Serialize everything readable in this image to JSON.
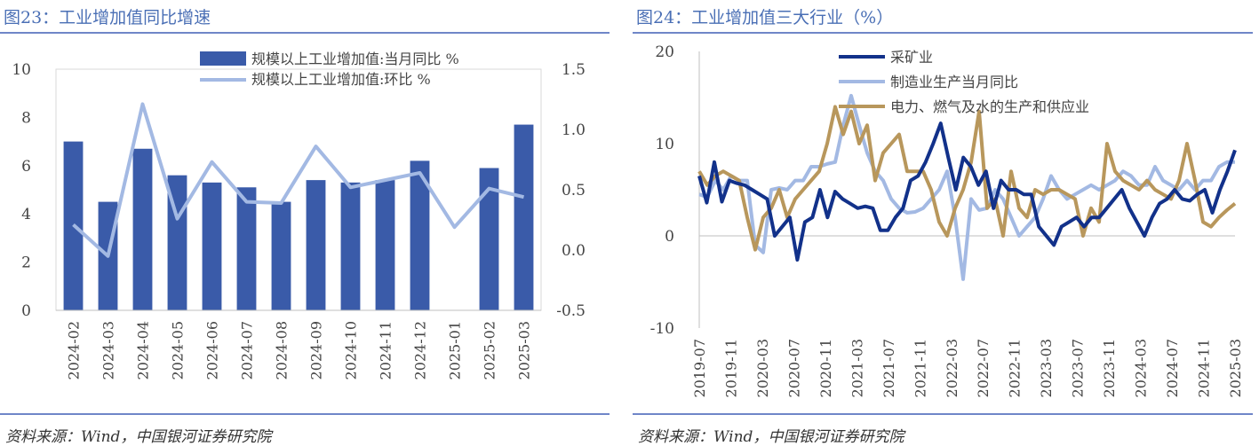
{
  "left_panel": {
    "title": "图23：工业增加值同比增速",
    "source": "资料来源：Wind，中国银河证券研究院"
  },
  "right_panel": {
    "title": "图24：工业增加值三大行业（%）",
    "source": "资料来源：Wind，中国银河证券研究院"
  },
  "colors": {
    "bar": "#3a5ba9",
    "line_light": "#a3b9e3",
    "dark_blue": "#12318a",
    "gold": "#b8975c",
    "rule": "#6f86c8"
  },
  "chart_data": [
    {
      "type": "bar",
      "title": "",
      "categories": [
        "2024-02",
        "2024-03",
        "2024-04",
        "2024-05",
        "2024-06",
        "2024-07",
        "2024-08",
        "2024-09",
        "2024-10",
        "2024-11",
        "2024-12",
        "2025-01",
        "2025-02",
        "2025-03"
      ],
      "left_ylim": [
        0,
        10
      ],
      "left_yticks": [
        "0",
        "2",
        "4",
        "6",
        "8",
        "10"
      ],
      "right_ylim": [
        -0.5,
        1.5
      ],
      "right_yticks": [
        "-0.5",
        "0.0",
        "0.5",
        "1.0",
        "1.5"
      ],
      "legend_position": "top-center",
      "series": [
        {
          "name": "规模以上工业增加值:当月同比 %",
          "type": "bar",
          "axis": "left",
          "values": [
            7.0,
            4.5,
            6.7,
            5.6,
            5.3,
            5.1,
            4.5,
            5.4,
            5.3,
            5.4,
            6.2,
            null,
            5.9,
            7.7
          ]
        },
        {
          "name": "规模以上工业增加值:环比 %",
          "type": "line",
          "axis": "right",
          "values": [
            0.21,
            -0.05,
            1.21,
            0.26,
            0.73,
            0.4,
            0.39,
            0.86,
            0.52,
            0.58,
            0.64,
            0.19,
            0.51,
            0.44
          ]
        }
      ],
      "grid": false
    },
    {
      "type": "line",
      "title": "",
      "ylim": [
        -10,
        20
      ],
      "yticks": [
        "-10",
        "0",
        "10",
        "20"
      ],
      "xticks": [
        "2019-07",
        "2019-11",
        "2020-03",
        "2020-07",
        "2020-11",
        "2021-03",
        "2021-07",
        "2021-11",
        "2022-03",
        "2022-07",
        "2022-11",
        "2023-03",
        "2023-07",
        "2023-11",
        "2024-03",
        "2024-07",
        "2024-11",
        "2025-03"
      ],
      "x_start": "2019-07",
      "x_end": "2025-03",
      "legend_position": "top-center",
      "series": [
        {
          "name": "采矿业",
          "values": [
            6.5,
            3.6,
            8.0,
            3.7,
            6.0,
            5.7,
            5.5,
            5.0,
            4.5,
            4.0,
            0.0,
            1.0,
            2.0,
            -2.6,
            1.5,
            2.0,
            5.0,
            2.0,
            4.8,
            4.0,
            3.5,
            3.0,
            3.2,
            3.0,
            0.6,
            0.6,
            2.0,
            3.0,
            6.0,
            6.5,
            8.0,
            10.0,
            12.2,
            8.5,
            5.0,
            8.5,
            7.5,
            5.5,
            7.0,
            3.0,
            6.0,
            5.0,
            5.0,
            4.5,
            4.5,
            1.0,
            0.0,
            -1.0,
            1.0,
            1.5,
            2.0,
            1.0,
            2.0,
            2.0,
            3.0,
            4.0,
            5.0,
            3.0,
            1.5,
            0.0,
            2.0,
            3.5,
            4.0,
            5.0,
            4.0,
            3.8,
            4.5,
            5.0,
            2.5,
            5.0,
            7.0,
            9.3
          ]
        },
        {
          "name": "制造业生产当月同比",
          "values": [
            4.5,
            4.2,
            6.0,
            5.0,
            6.5,
            6.0,
            6.0,
            -1.0,
            -1.8,
            5.0,
            5.2,
            5.0,
            6.0,
            6.0,
            7.5,
            7.5,
            7.8,
            8.0,
            12.0,
            15.2,
            12.0,
            9.0,
            7.0,
            6.0,
            4.0,
            3.0,
            2.5,
            2.6,
            3.0,
            4.0,
            5.0,
            7.0,
            2.0,
            -4.7,
            4.0,
            2.8,
            3.0,
            5.0,
            4.0,
            2.0,
            0.0,
            1.0,
            2.0,
            4.0,
            6.5,
            5.0,
            4.0,
            4.5,
            5.0,
            5.5,
            5.0,
            5.5,
            6.0,
            7.0,
            6.5,
            5.5,
            5.5,
            7.5,
            6.0,
            5.5,
            5.0,
            6.0,
            5.0,
            6.0,
            6.0,
            7.5,
            8.0,
            8.0
          ]
        },
        {
          "name": "电力、燃气及水的生产和供应业",
          "values": [
            7.0,
            5.5,
            6.5,
            7.0,
            6.5,
            6.0,
            2.0,
            -1.5,
            2.0,
            3.0,
            5.0,
            2.0,
            4.0,
            5.0,
            6.0,
            7.0,
            10.0,
            14.0,
            11.0,
            13.5,
            10.0,
            12.0,
            6.0,
            9.0,
            10.0,
            11.0,
            7.0,
            7.0,
            7.0,
            5.0,
            1.5,
            0.0,
            3.0,
            5.0,
            8.0,
            13.5,
            3.0,
            4.0,
            0.0,
            7.0,
            3.0,
            2.0,
            5.0,
            4.5,
            5.0,
            5.0,
            4.5,
            4.0,
            0.0,
            3.0,
            1.5,
            10.0,
            7.0,
            6.0,
            5.5,
            5.0,
            6.0,
            5.0,
            4.5,
            4.0,
            6.0,
            10.0,
            6.0,
            1.5,
            1.0,
            2.0,
            2.8,
            3.5
          ]
        }
      ],
      "grid": false
    }
  ]
}
